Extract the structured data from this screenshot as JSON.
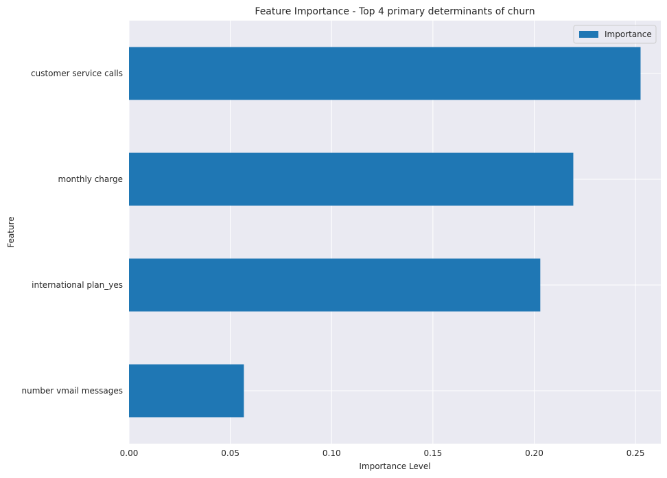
{
  "chart_data": {
    "type": "bar",
    "orientation": "horizontal",
    "title": "Feature Importance - Top 4 primary determinants of churn",
    "xlabel": "Importance Level",
    "ylabel": "Feature",
    "categories": [
      "customer service calls",
      "monthly charge",
      "international plan_yes",
      "number vmail messages"
    ],
    "series": [
      {
        "name": "Importance",
        "values": [
          0.2525,
          0.2193,
          0.203,
          0.0567
        ]
      }
    ],
    "xlim": [
      0.0,
      0.2625
    ],
    "xticks": [
      0.0,
      0.05,
      0.1,
      0.15,
      0.2,
      0.25
    ],
    "xtick_labels": [
      "0.00",
      "0.05",
      "0.10",
      "0.15",
      "0.20",
      "0.25"
    ],
    "grid": true,
    "legend_position": "top-right",
    "colors": {
      "bar": "#1f77b4",
      "plot_background": "#eaeaf2",
      "grid": "#ffffff"
    }
  }
}
